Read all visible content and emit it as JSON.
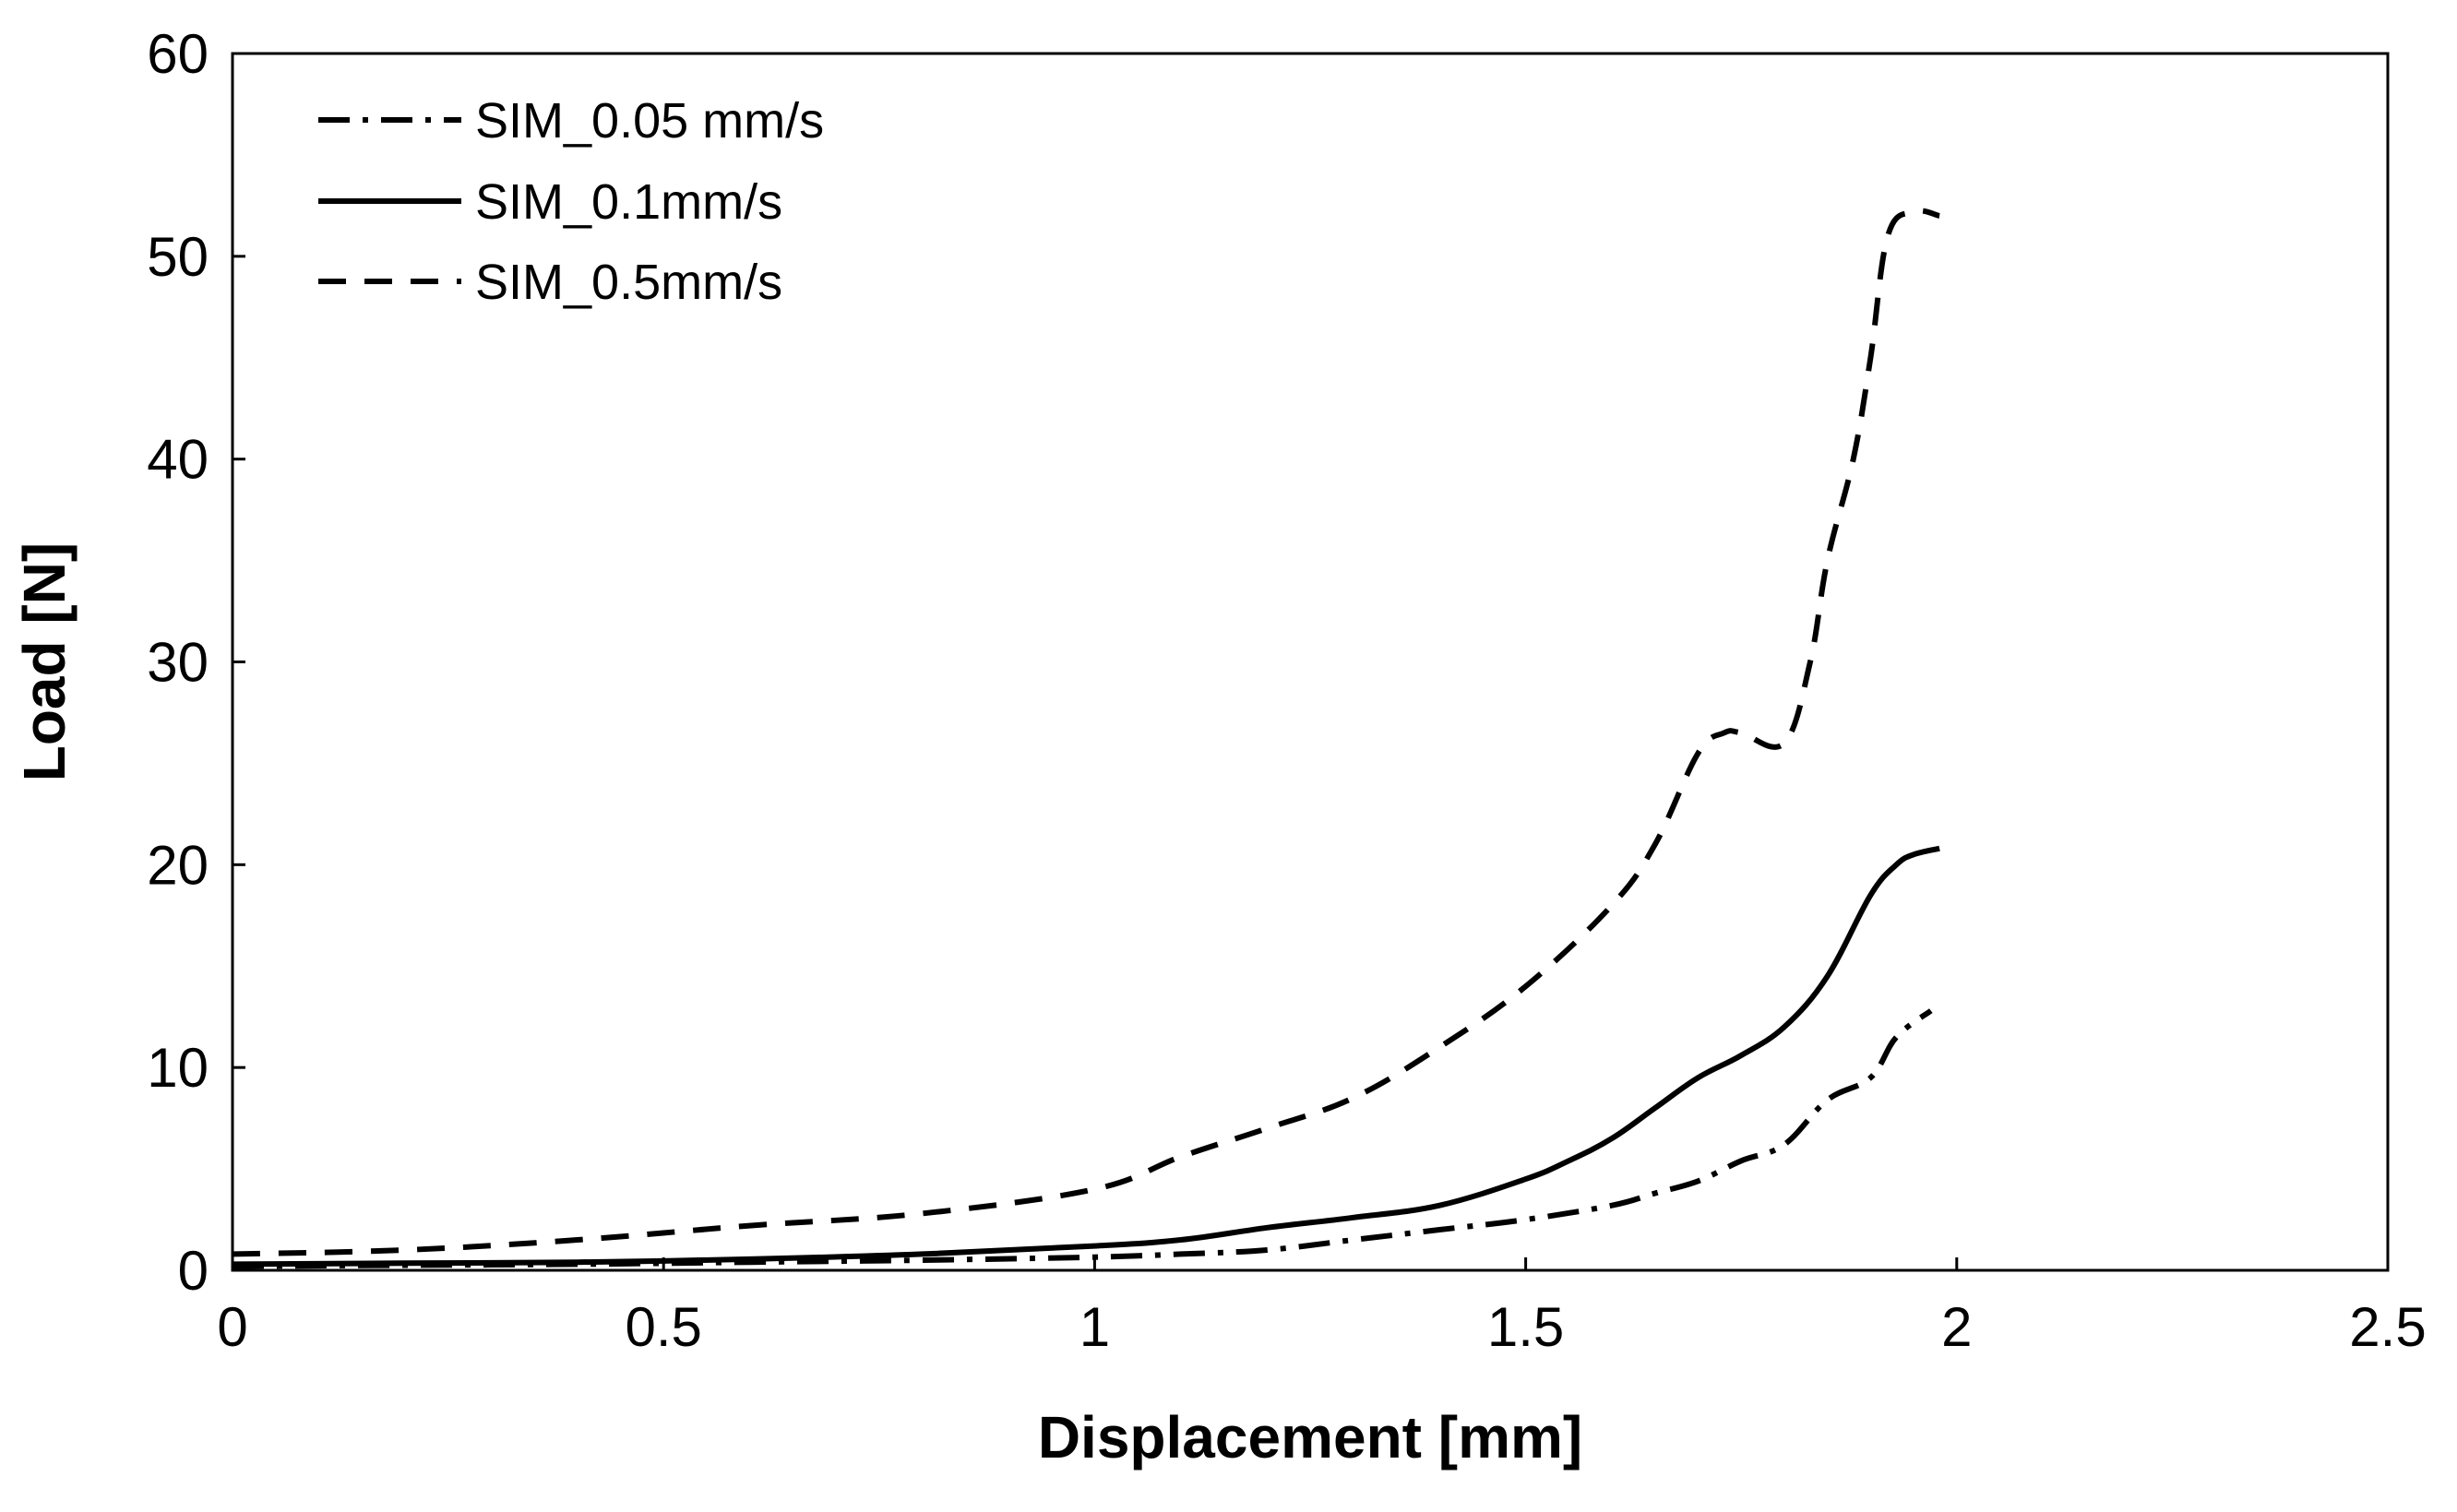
{
  "chart_data": {
    "type": "line",
    "title": "",
    "xlabel": "Displacement [mm]",
    "ylabel": "Load [N]",
    "xlim": [
      0,
      2.5
    ],
    "ylim": [
      0,
      60
    ],
    "xticks": [
      0,
      0.5,
      1,
      1.5,
      2,
      2.5
    ],
    "yticks": [
      0,
      10,
      20,
      30,
      40,
      50,
      60
    ],
    "xtick_labels": [
      "0",
      "0.5",
      "1",
      "1.5",
      "2",
      "2.5"
    ],
    "ytick_labels": [
      "0",
      "10",
      "20",
      "30",
      "40",
      "50",
      "60"
    ],
    "grid": false,
    "legend_position": "top-left",
    "series": [
      {
        "name": "SIM_0.05 mm/s",
        "style": "dash-dot",
        "color": "#000000",
        "x": [
          0,
          0.2,
          0.4,
          0.6,
          0.8,
          1.0,
          1.1,
          1.2,
          1.3,
          1.4,
          1.5,
          1.6,
          1.65,
          1.7,
          1.75,
          1.8,
          1.85,
          1.9,
          1.93,
          1.97
        ],
        "y": [
          0.2,
          0.25,
          0.3,
          0.4,
          0.5,
          0.65,
          0.8,
          1.0,
          1.5,
          2.0,
          2.5,
          3.2,
          3.8,
          4.4,
          5.4,
          6.2,
          8.4,
          9.5,
          11.5,
          12.8
        ]
      },
      {
        "name": "SIM_0.1mm/s",
        "style": "solid",
        "color": "#000000",
        "x": [
          0,
          0.2,
          0.4,
          0.6,
          0.8,
          1.0,
          1.1,
          1.2,
          1.3,
          1.4,
          1.5,
          1.55,
          1.6,
          1.65,
          1.7,
          1.75,
          1.8,
          1.85,
          1.9,
          1.93,
          1.95,
          1.98
        ],
        "y": [
          0.3,
          0.35,
          0.4,
          0.55,
          0.8,
          1.2,
          1.5,
          2.1,
          2.6,
          3.2,
          4.5,
          5.4,
          6.5,
          8.0,
          9.5,
          10.6,
          12.0,
          14.5,
          18.5,
          20.0,
          20.5,
          20.8
        ]
      },
      {
        "name": "SIM_0.5mm/s",
        "style": "dashed",
        "color": "#000000",
        "x": [
          0,
          0.2,
          0.4,
          0.6,
          0.8,
          1.0,
          1.1,
          1.2,
          1.3,
          1.4,
          1.5,
          1.6,
          1.65,
          1.7,
          1.73,
          1.75,
          1.8,
          1.83,
          1.85,
          1.88,
          1.9,
          1.92,
          1.95,
          1.98
        ],
        "y": [
          0.8,
          1.0,
          1.5,
          2.2,
          2.8,
          4.0,
          5.6,
          7.0,
          8.5,
          11.0,
          14.0,
          18.0,
          21.0,
          25.5,
          26.5,
          26.5,
          26.0,
          30.0,
          35.0,
          40.0,
          45.0,
          51.0,
          52.2,
          52.0
        ]
      }
    ]
  }
}
